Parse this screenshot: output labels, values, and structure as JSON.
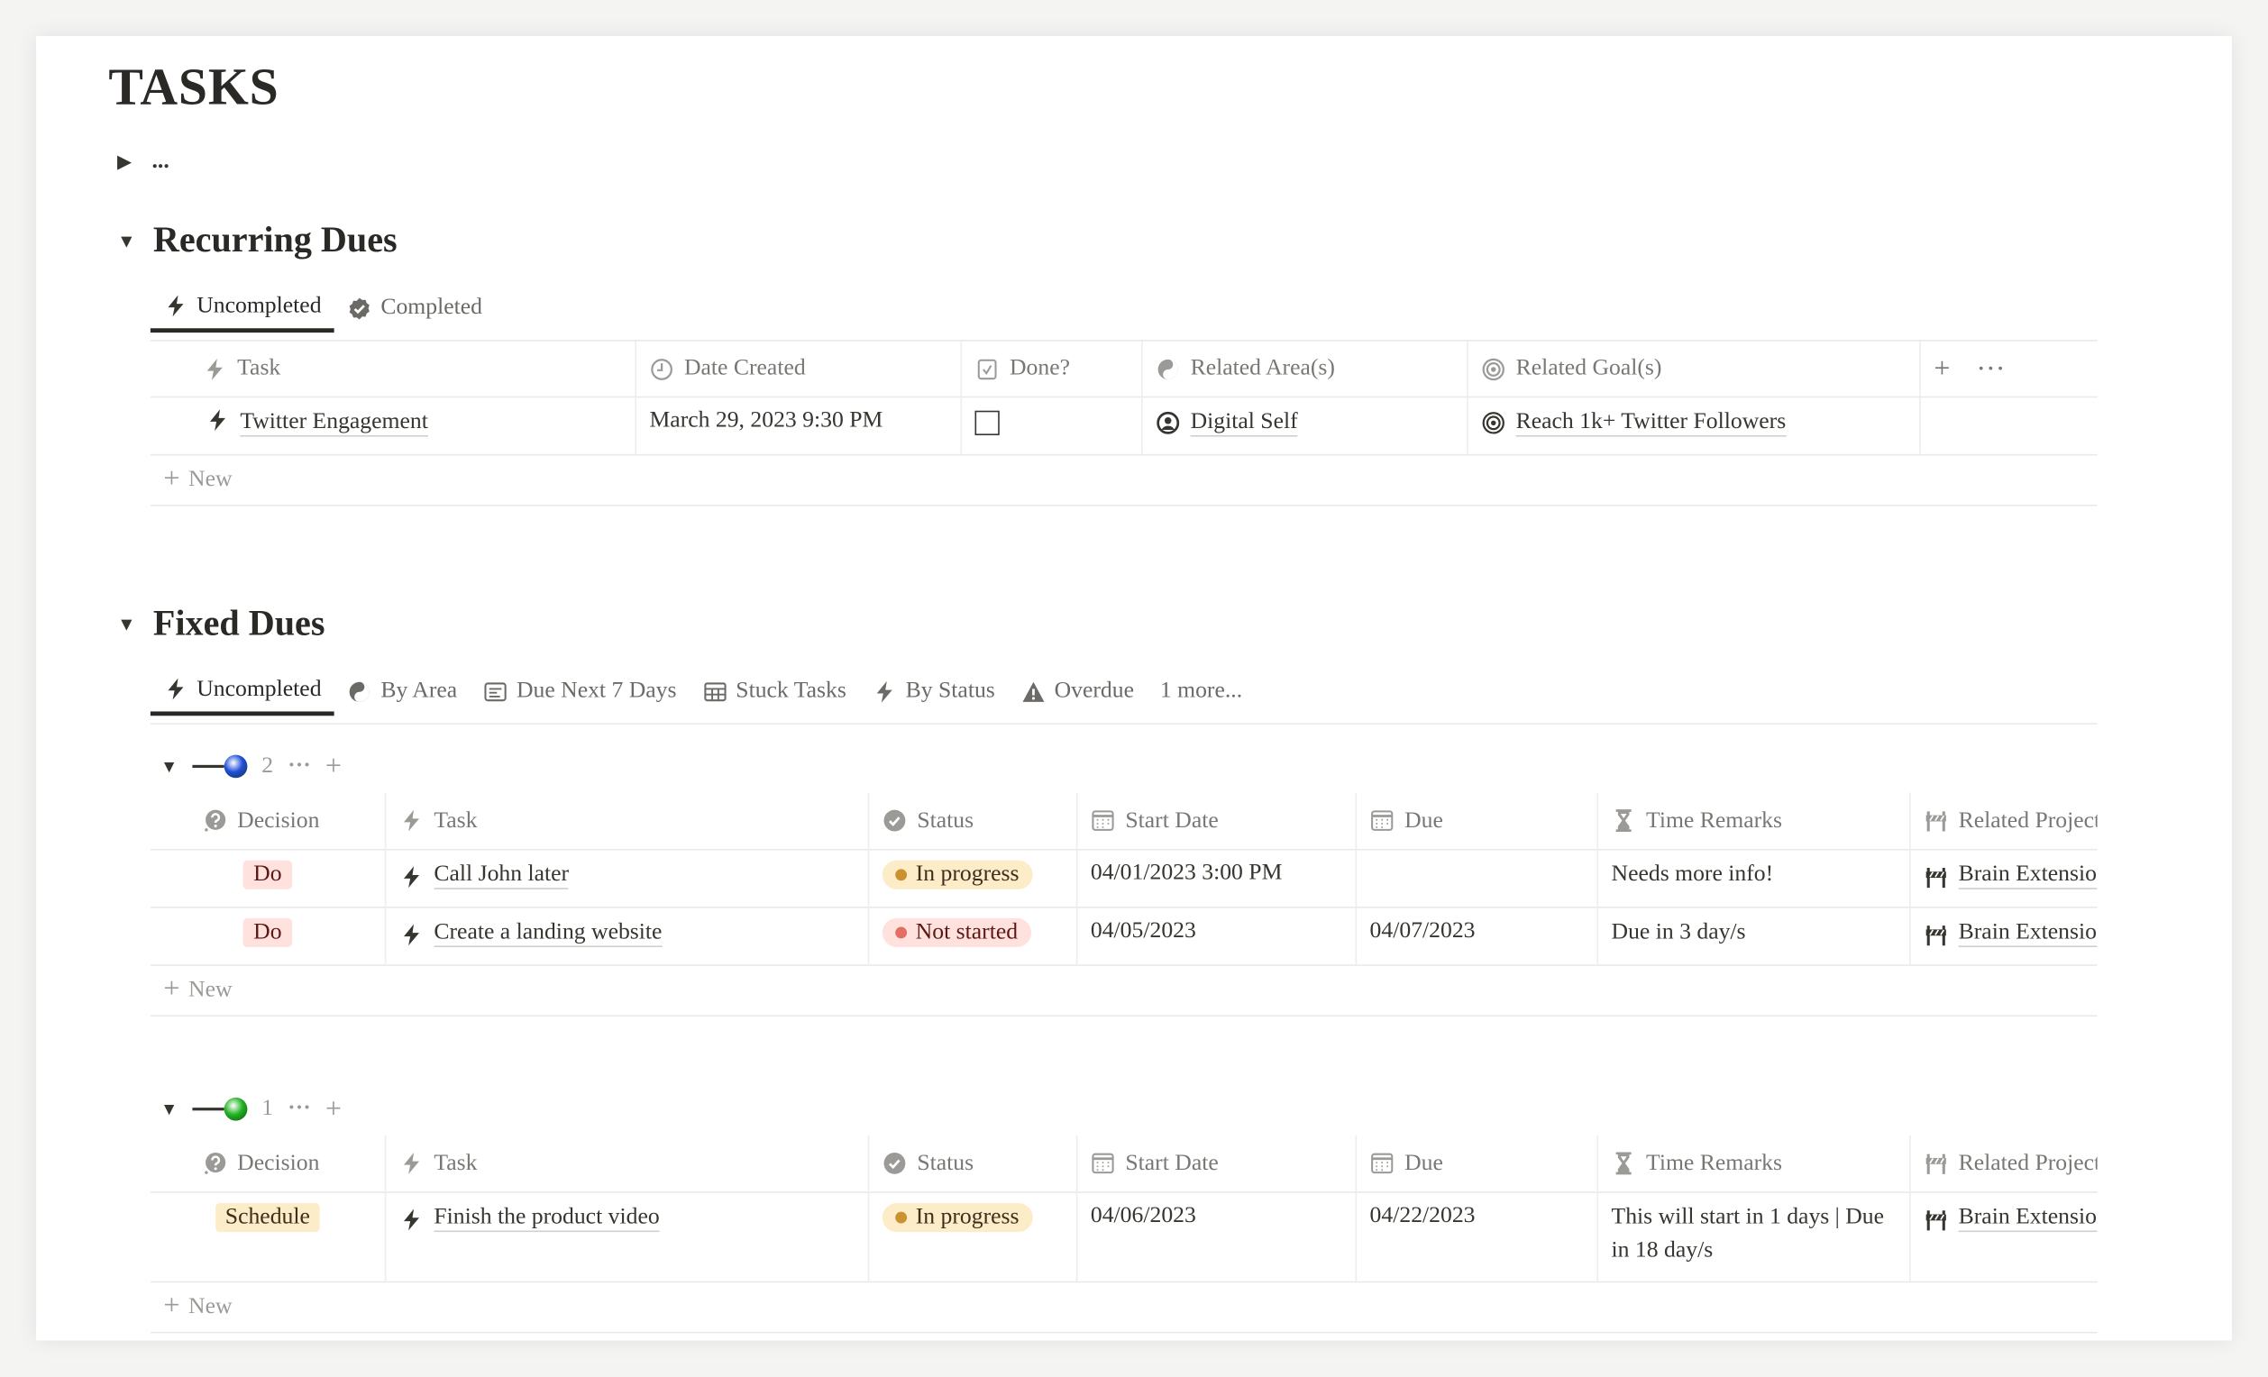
{
  "page": {
    "title": "TASKS",
    "collapsed_toggle_label": "..."
  },
  "colors": {
    "do_tag_bg": "#ffe2dd",
    "schedule_tag_bg": "#fdecc8",
    "in_progress_bg": "#fdecc8",
    "in_progress_dot": "#cb912f",
    "not_started_bg": "#ffe2dd",
    "not_started_dot": "#e16f64",
    "group1_color": "#1f4fd8",
    "group2_color": "#22b322"
  },
  "recurring": {
    "heading": "Recurring Dues",
    "tabs": [
      {
        "label": "Uncompleted",
        "icon": "bolt-icon",
        "active": true
      },
      {
        "label": "Completed",
        "icon": "verified-check-icon",
        "active": false
      }
    ],
    "columns": [
      {
        "label": "Task",
        "icon": "bolt-icon"
      },
      {
        "label": "Date Created",
        "icon": "clock-icon"
      },
      {
        "label": "Done?",
        "icon": "checkbox-icon"
      },
      {
        "label": "Related Area(s)",
        "icon": "yin-yang-icon"
      },
      {
        "label": "Related Goal(s)",
        "icon": "target-icon"
      }
    ],
    "rows": [
      {
        "task": "Twitter Engagement",
        "date_created": "March 29, 2023 9:30 PM",
        "done": false,
        "area": "Digital Self",
        "goal": "Reach 1k+ Twitter Followers"
      }
    ],
    "new_label": "New"
  },
  "fixed": {
    "heading": "Fixed Dues",
    "tabs": [
      {
        "label": "Uncompleted",
        "icon": "bolt-icon",
        "active": true
      },
      {
        "label": "By Area",
        "icon": "yin-yang-icon"
      },
      {
        "label": "Due Next 7 Days",
        "icon": "calendar-list-icon"
      },
      {
        "label": "Stuck Tasks",
        "icon": "table-icon"
      },
      {
        "label": "By Status",
        "icon": "bolt-icon"
      },
      {
        "label": "Overdue",
        "icon": "warning-icon"
      },
      {
        "label": "1 more..."
      }
    ],
    "columns": [
      {
        "label": "Decision",
        "icon": "question-icon"
      },
      {
        "label": "Task",
        "icon": "bolt-icon"
      },
      {
        "label": "Status",
        "icon": "status-check-icon"
      },
      {
        "label": "Start Date",
        "icon": "calendar-icon"
      },
      {
        "label": "Due",
        "icon": "calendar-icon"
      },
      {
        "label": "Time Remarks",
        "icon": "hourglass-icon"
      },
      {
        "label": "Related Projects",
        "icon": "barrier-icon"
      }
    ],
    "groups": [
      {
        "count": "2",
        "color": "blue",
        "rows": [
          {
            "decision": "Do",
            "task": "Call John later",
            "status": "In progress",
            "start": "04/01/2023 3:00 PM",
            "due": "",
            "remarks": "Needs more info!",
            "project": "Brain Extension"
          },
          {
            "decision": "Do",
            "task": "Create a landing website",
            "status": "Not started",
            "start": "04/05/2023",
            "due": "04/07/2023",
            "remarks": "Due in 3 day/s",
            "project": "Brain Extension"
          }
        ]
      },
      {
        "count": "1",
        "color": "green",
        "rows": [
          {
            "decision": "Schedule",
            "task": "Finish the product video",
            "status": "In progress",
            "start": "04/06/2023",
            "due": "04/22/2023",
            "remarks": "This will start in 1 days | Due in 18 day/s",
            "project": "Brain Extension"
          }
        ]
      }
    ],
    "new_label": "New"
  }
}
